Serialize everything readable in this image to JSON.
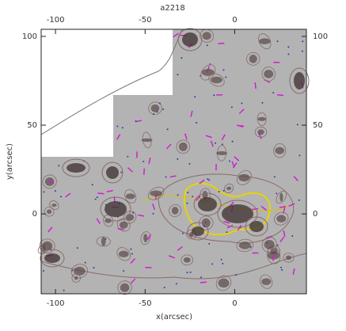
{
  "chart_data": {
    "type": "image",
    "title": "a2218",
    "x_label": "x(arcsec)",
    "y_label": "y(arcsec)",
    "xlim": [
      -108,
      40
    ],
    "ylim": [
      -45,
      104
    ],
    "xticks": [
      -100,
      -50,
      0
    ],
    "yticks": [
      0,
      50,
      100
    ]
  }
}
